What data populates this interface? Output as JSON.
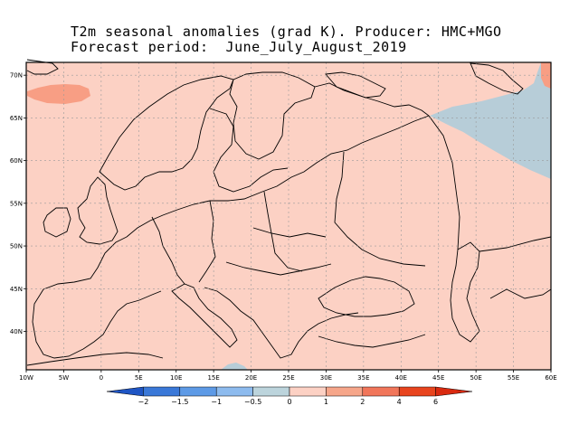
{
  "title": {
    "line1": "T2m seasonal anomalies (grad K). Producer: HMC+MGO",
    "line2": "Forecast period:  June_July_August_2019"
  },
  "map": {
    "lon_labels": [
      "10W",
      "5W",
      "0",
      "5E",
      "10E",
      "15E",
      "20E",
      "25E",
      "30E",
      "35E",
      "40E",
      "45E",
      "50E",
      "55E",
      "60E"
    ],
    "lat_labels": [
      "70N",
      "65N",
      "60N",
      "55N",
      "50N",
      "45N",
      "40N"
    ],
    "lon_range": [
      -10,
      60
    ],
    "lat_range": [
      35.5,
      71.5
    ],
    "grid": true,
    "colors": {
      "background_anomaly": "#fcd1c4",
      "cold_anomaly": "#b7cdd8",
      "warm_anomaly": "#f89e84",
      "coastline": "#000000"
    }
  },
  "colorbar": {
    "labels": [
      "−2",
      "−1.5",
      "−1",
      "−0.5",
      "0",
      "1",
      "2",
      "4",
      "6"
    ],
    "colors": [
      "#1f55c4",
      "#3a78d8",
      "#5d9ae6",
      "#8dbbee",
      "#bcd4dc",
      "#fcd1c4",
      "#f6a68a",
      "#f1765a",
      "#e8441e",
      "#d92a10"
    ]
  }
}
